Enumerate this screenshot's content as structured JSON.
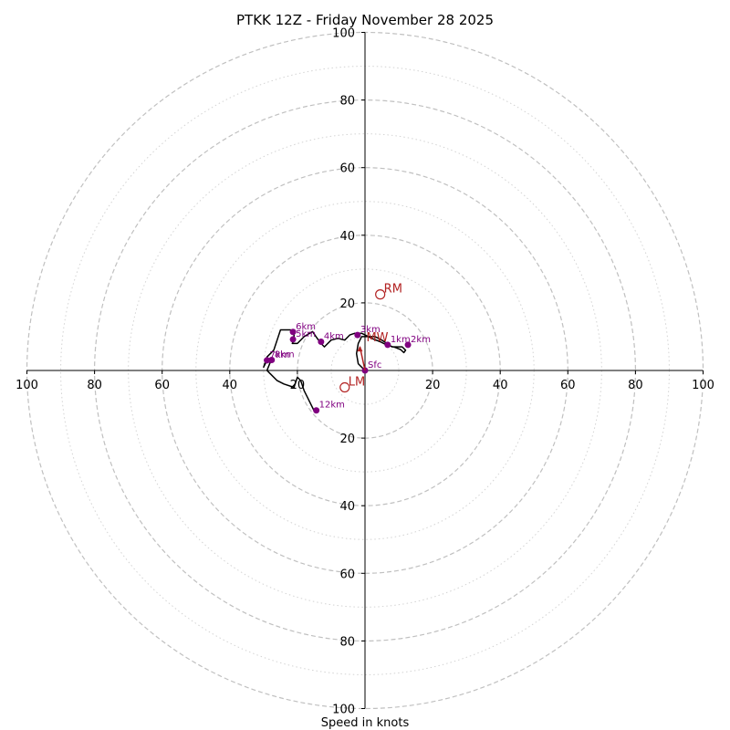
{
  "chart_data": {
    "type": "hodograph",
    "title": "PTKK 12Z - Friday November 28 2025",
    "xlabel": "Speed in knots",
    "range": [
      -100,
      100
    ],
    "ring_major": [
      20,
      40,
      60,
      80,
      100
    ],
    "ring_minor": [
      10,
      30,
      50,
      70,
      90
    ],
    "x_ticks": [
      "100",
      "80",
      "60",
      "40",
      "20",
      "20",
      "40",
      "60",
      "80",
      "100"
    ],
    "x_tick_values": [
      -100,
      -80,
      -60,
      -40,
      -20,
      20,
      40,
      60,
      80,
      100
    ],
    "y_ticks": [
      "100",
      "80",
      "60",
      "40",
      "20",
      "20",
      "40",
      "60",
      "80",
      "100"
    ],
    "y_tick_values": [
      100,
      80,
      60,
      40,
      20,
      -20,
      -40,
      -60,
      -80,
      -100
    ],
    "trace": [
      [
        0,
        0
      ],
      [
        -2,
        2
      ],
      [
        -2.5,
        5
      ],
      [
        -2,
        8
      ],
      [
        -1,
        10
      ],
      [
        1,
        10
      ],
      [
        3,
        10
      ],
      [
        5,
        9
      ],
      [
        8,
        7
      ],
      [
        11,
        7
      ],
      [
        12,
        6
      ],
      [
        11.5,
        5.3
      ],
      [
        10.5,
        6.2
      ],
      [
        9,
        6.8
      ],
      [
        6.5,
        7.5
      ],
      [
        4.5,
        8.5
      ],
      [
        2,
        9.5
      ],
      [
        -1,
        11
      ],
      [
        -3,
        11
      ],
      [
        -4.5,
        10.5
      ],
      [
        -6,
        9
      ],
      [
        -8,
        9.5
      ],
      [
        -10,
        9
      ],
      [
        -12,
        7
      ],
      [
        -13,
        8
      ],
      [
        -14.5,
        10
      ],
      [
        -15.5,
        11.5
      ],
      [
        -18,
        10
      ],
      [
        -20,
        8
      ],
      [
        -21.5,
        8
      ],
      [
        -21,
        9
      ],
      [
        -21,
        11
      ],
      [
        -22,
        12
      ],
      [
        -24,
        12
      ],
      [
        -25,
        12
      ],
      [
        -26,
        9
      ],
      [
        -27,
        6
      ],
      [
        -29,
        4
      ],
      [
        -30,
        1
      ],
      [
        -29,
        3
      ],
      [
        -28,
        3.3
      ],
      [
        -27,
        3.2
      ],
      [
        -28,
        2.5
      ],
      [
        -29,
        0
      ],
      [
        -28,
        -1
      ],
      [
        -26,
        -3
      ],
      [
        -24,
        -4
      ],
      [
        -21,
        -5
      ],
      [
        -20,
        -2
      ],
      [
        -19,
        -3
      ],
      [
        -18,
        -6
      ],
      [
        -17,
        -8
      ],
      [
        -16,
        -10
      ],
      [
        -15,
        -12
      ]
    ],
    "markers": [
      {
        "label": "Sfc",
        "u": 0,
        "v": 0
      },
      {
        "label": "1km",
        "u": 6.7,
        "v": 7.6
      },
      {
        "label": "2km",
        "u": 12.7,
        "v": 7.6
      },
      {
        "label": "3km",
        "u": -2.2,
        "v": 10.5
      },
      {
        "label": "4km",
        "u": -13,
        "v": 8.5
      },
      {
        "label": "5km",
        "u": -21.3,
        "v": 9.2
      },
      {
        "label": "6km",
        "u": -21.3,
        "v": 11.4
      },
      {
        "label": "7km",
        "u": -29,
        "v": 3
      },
      {
        "label": "8km",
        "u": -27.6,
        "v": 3.1
      },
      {
        "label": "12km",
        "u": -14.4,
        "v": -11.8
      }
    ],
    "motions": [
      {
        "label": "RM",
        "u": 4.5,
        "v": 22.5
      },
      {
        "label": "LM",
        "u": -6,
        "v": -5
      },
      {
        "label": "MW",
        "u": -1.5,
        "v": 7
      }
    ],
    "colors": {
      "trace": "#000000",
      "marker": "#800080",
      "motion": "#b22222",
      "ring": "#c0c0c0",
      "ring_minor": "#d3d3d3"
    }
  }
}
